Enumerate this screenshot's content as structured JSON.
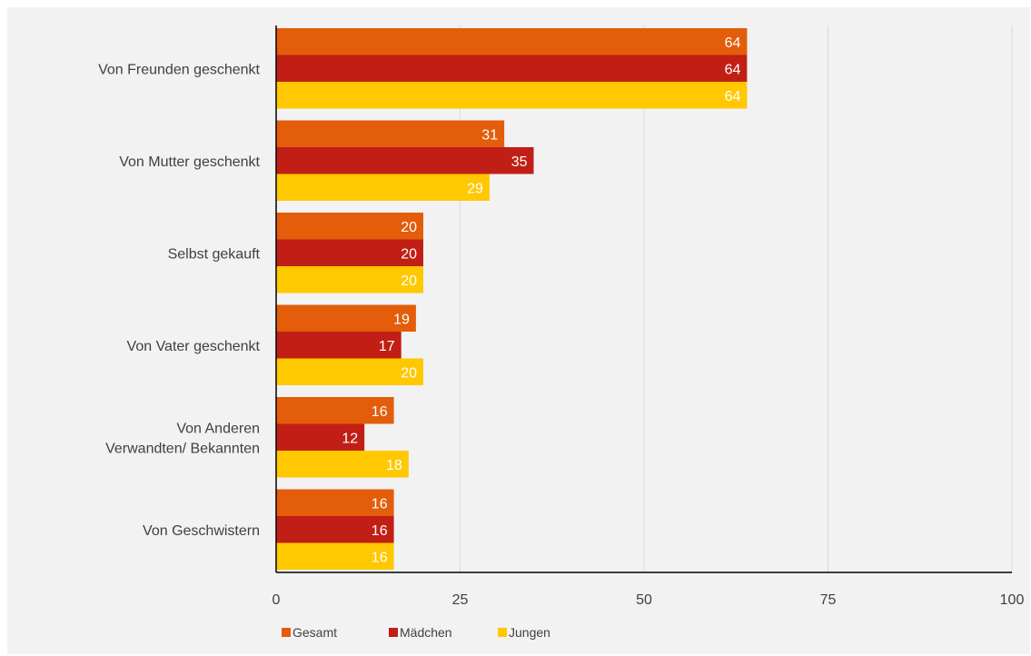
{
  "chart_data": {
    "type": "bar",
    "orientation": "horizontal",
    "title": "",
    "xlabel": "",
    "ylabel": "",
    "xlim": [
      0,
      100
    ],
    "ticks": [
      "0",
      "25",
      "50",
      "75",
      "100"
    ],
    "tick_values": [
      0,
      25,
      50,
      75,
      100
    ],
    "grid": true,
    "legend_position": "bottom-left",
    "categories": [
      [
        "Von Freunden geschenkt"
      ],
      [
        "Von Mutter geschenkt"
      ],
      [
        "Selbst gekauft"
      ],
      [
        "Von Vater geschenkt"
      ],
      [
        "Von Anderen",
        "Verwandten/ Bekannten"
      ],
      [
        "Von Geschwistern"
      ]
    ],
    "series": [
      {
        "name": "Gesamt",
        "color": "#e35d0b",
        "values": [
          64,
          31,
          20,
          19,
          16,
          16
        ]
      },
      {
        "name": "Mädchen",
        "color": "#c11f15",
        "values": [
          64,
          35,
          20,
          17,
          12,
          16
        ]
      },
      {
        "name": "Jungen",
        "color": "#ffc800",
        "values": [
          64,
          29,
          20,
          20,
          18,
          16
        ]
      }
    ]
  }
}
